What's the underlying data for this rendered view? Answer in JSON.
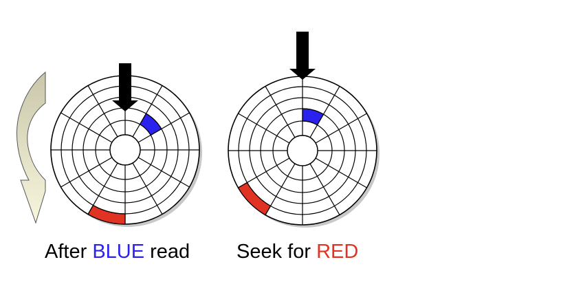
{
  "colors": {
    "blue": "#2b22ee",
    "red": "#e03323",
    "line": "#000000",
    "shadow": "#9a9a9a",
    "curved_arrow_top": "#c9c6ab",
    "curved_arrow_bottom": "#f7f6dc"
  },
  "disk": {
    "tracks": 6,
    "sectors": 12
  },
  "diagrams": [
    {
      "name": "after-blue-read",
      "caption_prefix": "After ",
      "caption_highlight": "BLUE",
      "caption_suffix": " read",
      "highlight_color": "blue",
      "blue_sector": {
        "track": 2,
        "start_deg": -60,
        "end_deg": -30
      },
      "red_sector": {
        "track": 5,
        "start_deg": 90,
        "end_deg": 120
      },
      "head_icon": "down-arrow-icon",
      "rotation_icon": "curved-arrow-icon"
    },
    {
      "name": "seek-for-red",
      "caption_prefix": "Seek for ",
      "caption_highlight": "RED",
      "caption_suffix": "",
      "highlight_color": "red",
      "blue_sector": {
        "track": 2,
        "start_deg": -90,
        "end_deg": -60
      },
      "red_sector": {
        "track": 5,
        "start_deg": 120,
        "end_deg": 150
      },
      "head_icon": "down-arrow-icon"
    }
  ]
}
